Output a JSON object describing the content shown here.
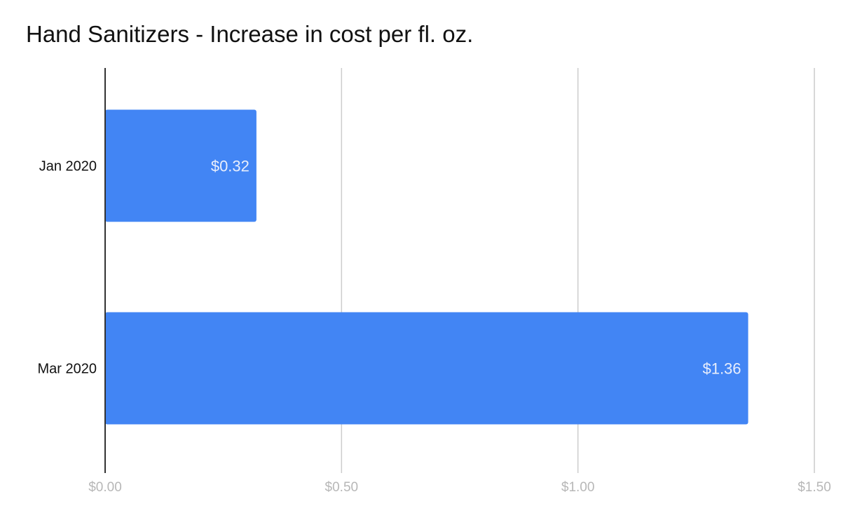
{
  "chart_data": {
    "type": "bar",
    "orientation": "horizontal",
    "title": "Hand Sanitizers - Increase in cost per fl. oz.",
    "categories": [
      "Jan 2020",
      "Mar 2020"
    ],
    "values": [
      0.32,
      1.36
    ],
    "data_labels": [
      "$0.32",
      "$1.36"
    ],
    "xlim": [
      0,
      1.5
    ],
    "xticks": [
      0,
      0.5,
      1.0,
      1.5
    ],
    "xtick_labels": [
      "$0.00",
      "$0.50",
      "$1.00",
      "$1.50"
    ],
    "xlabel": "",
    "ylabel": "",
    "grid": true,
    "legend": "none",
    "colors": {
      "bar": "#4285f4",
      "data_label": "#e8eefc",
      "grid": "#cccccc",
      "axis": "#333333",
      "tick_label": "#b7b7b7",
      "category_label": "#111111",
      "title": "#111111"
    }
  }
}
